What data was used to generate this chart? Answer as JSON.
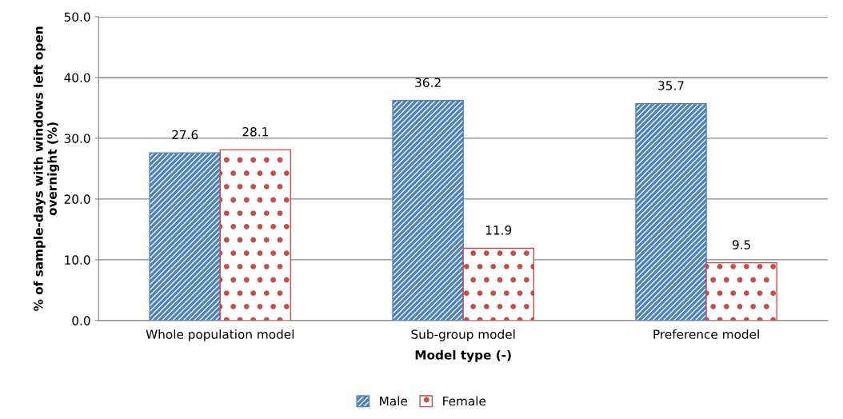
{
  "chart_data": {
    "type": "bar",
    "xlabel": "Model type (-)",
    "ylabel": "% of sample-days with windows left open\novernight (%)",
    "categories": [
      "Whole population model",
      "Sub-group model",
      "Preference model"
    ],
    "series": [
      {
        "name": "Male",
        "color": "#4f81bd",
        "values": [
          27.6,
          36.2,
          35.7
        ]
      },
      {
        "name": "Female",
        "color": "#c0504d",
        "values": [
          28.1,
          11.9,
          9.5
        ]
      }
    ],
    "ylim": [
      0,
      50
    ],
    "yticks": [
      {
        "value": 0,
        "label": "0.0"
      },
      {
        "value": 10,
        "label": "10.0"
      },
      {
        "value": 20,
        "label": "20.0"
      },
      {
        "value": 30,
        "label": "30.0"
      },
      {
        "value": 40,
        "label": "40.0"
      },
      {
        "value": 50,
        "label": "50.0"
      }
    ],
    "grid": "y",
    "legend": "bottom",
    "data_labels": true
  }
}
